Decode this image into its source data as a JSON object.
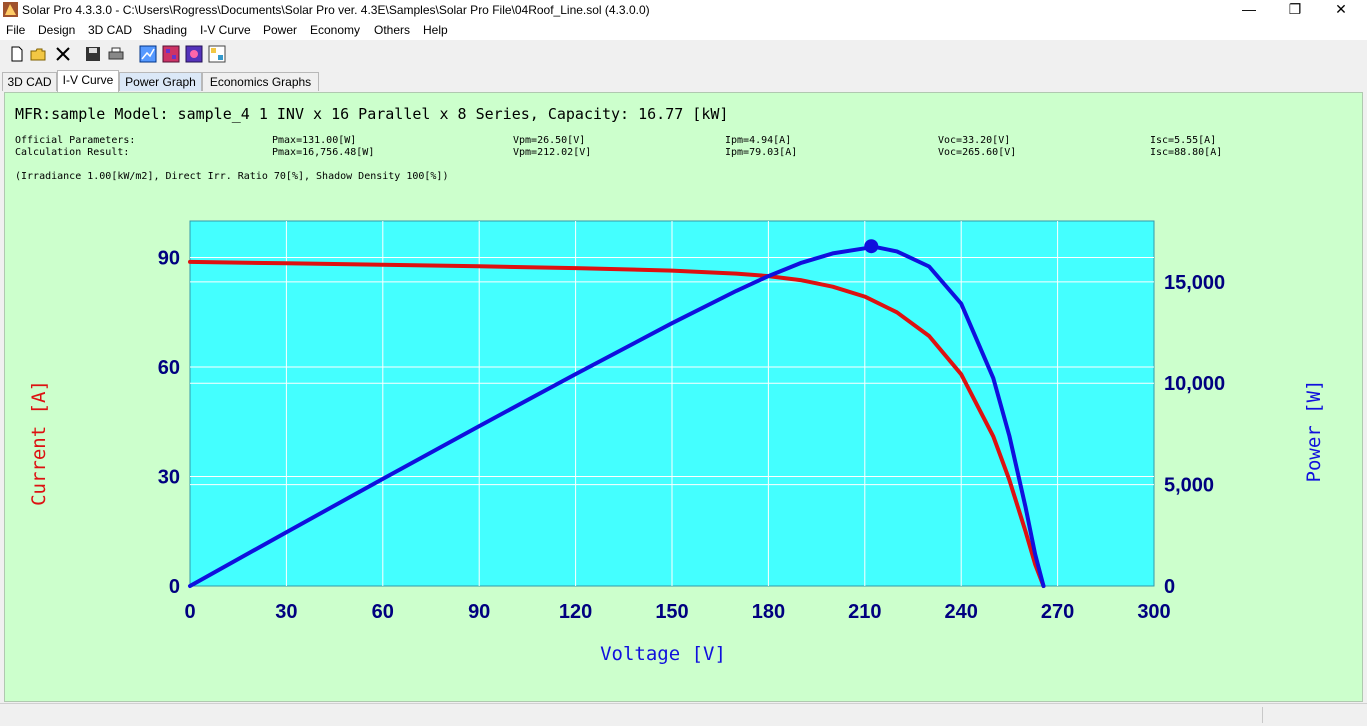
{
  "window": {
    "title": "Solar Pro 4.3.3.0 - C:\\Users\\Rogress\\Documents\\Solar Pro ver. 4.3E\\Samples\\Solar Pro File\\04Roof_Line.sol (4.3.0.0)",
    "minimize": "—",
    "restore": "❐",
    "close": "✕"
  },
  "menu": [
    "File",
    "Design",
    "3D CAD",
    "Shading",
    "I-V Curve",
    "Power",
    "Economy",
    "Others",
    "Help"
  ],
  "toolbar": {
    "icons": [
      "new-file-icon",
      "open-folder-icon",
      "delete-icon",
      "save-icon",
      "print-icon",
      "graph-view-icon",
      "color-map-icon",
      "settings-grid-icon",
      "image-view-icon"
    ]
  },
  "tabs": [
    "3D CAD",
    "I-V Curve",
    "Power Graph",
    "Economics Graphs"
  ],
  "panel": {
    "heading": "MFR:sample Model: sample_4 1 INV x 16 Parallel x 8 Series, Capacity: 16.77 [kW]",
    "official": {
      "label": "Official Parameters:",
      "pmax": "Pmax=131.00[W]",
      "vpm": "Vpm=26.50[V]",
      "ipm": "Ipm=4.94[A]",
      "voc": "Voc=33.20[V]",
      "isc": "Isc=5.55[A]"
    },
    "calc": {
      "label": "Calculation Result:",
      "pmax": "Pmax=16,756.48[W]",
      "vpm": "Vpm=212.02[V]",
      "ipm": "Ipm=79.03[A]",
      "voc": "Voc=265.60[V]",
      "isc": "Isc=88.80[A]"
    },
    "conditions": "(Irradiance 1.00[kW/m2], Direct Irr. Ratio 70[%], Shadow Density 100[%])"
  },
  "chart_data": {
    "type": "line",
    "xlabel": "Voltage [V]",
    "ylabel": "Current [A]",
    "y2label": "Power [W]",
    "xlim": [
      0,
      300
    ],
    "ylim": [
      0,
      100
    ],
    "y2lim": [
      0,
      18000
    ],
    "x_ticks": [
      "0",
      "30",
      "60",
      "90",
      "120",
      "150",
      "180",
      "210",
      "240",
      "270",
      "300"
    ],
    "y_ticks": [
      "0",
      "30",
      "60",
      "90"
    ],
    "y_tick_values": [
      0,
      30,
      60,
      90
    ],
    "y2_ticks": [
      "0",
      "5,000",
      "10,000",
      "15,000"
    ],
    "y2_tick_values": [
      0,
      5000,
      10000,
      15000
    ],
    "grid": true,
    "colors": {
      "plot_bg": "#44ffff",
      "current": "#dd1111",
      "power": "#1010dd",
      "axis_text": "#000080"
    },
    "max_power_point": {
      "x": 212.02,
      "y": 16756.48
    },
    "series": [
      {
        "axis": "left",
        "x": [
          0,
          30,
          60,
          90,
          120,
          150,
          170,
          180,
          190,
          200,
          210,
          220,
          230,
          240,
          250,
          255,
          260,
          263,
          265.6
        ],
        "y": [
          88.8,
          88.4,
          88.0,
          87.6,
          87.1,
          86.4,
          85.6,
          84.9,
          83.8,
          82.0,
          79.3,
          75.0,
          68.5,
          58.0,
          41.0,
          29.0,
          15.0,
          6.0,
          0
        ]
      },
      {
        "axis": "right",
        "x": [
          0,
          30,
          60,
          90,
          120,
          150,
          170,
          180,
          190,
          200,
          210,
          212.02,
          220,
          230,
          240,
          250,
          255,
          260,
          263,
          265.6
        ],
        "y": [
          0,
          2652,
          5280,
          7884,
          10452,
          12960,
          14552,
          15282,
          15922,
          16400,
          16653,
          16756,
          16500,
          15755,
          13920,
          10250,
          7395,
          3900,
          1578,
          0
        ]
      }
    ]
  }
}
